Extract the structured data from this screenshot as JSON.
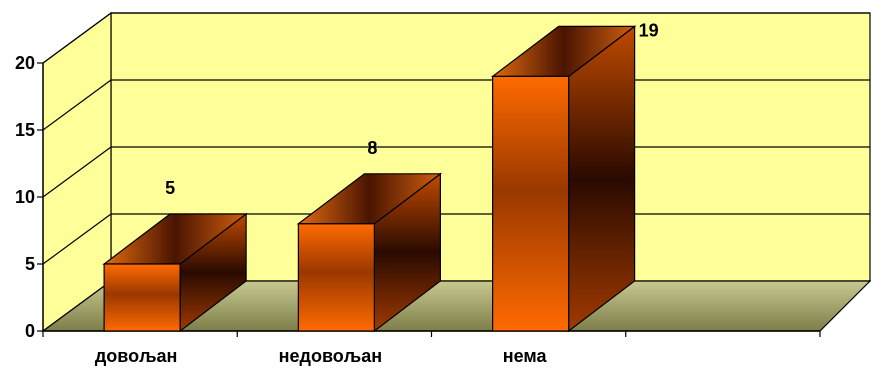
{
  "chart_data": {
    "type": "bar",
    "style": "3d",
    "categories": [
      "довољан",
      "недовољан",
      "нема"
    ],
    "values": [
      5,
      8,
      19
    ],
    "data_labels": [
      "5",
      "8",
      "19"
    ],
    "yticks": [
      "0",
      "5",
      "10",
      "15",
      "20"
    ],
    "ylim": [
      0,
      20
    ],
    "grid": true,
    "legend": "none",
    "colors": {
      "back_wall": "#ffff99",
      "floor": "#9c9c64",
      "bar_front_light": "#ff6a00",
      "bar_front_dark": "#8a3000",
      "bar_side_dark": "#2a0a00",
      "bar_top": "#cc5a10"
    }
  }
}
